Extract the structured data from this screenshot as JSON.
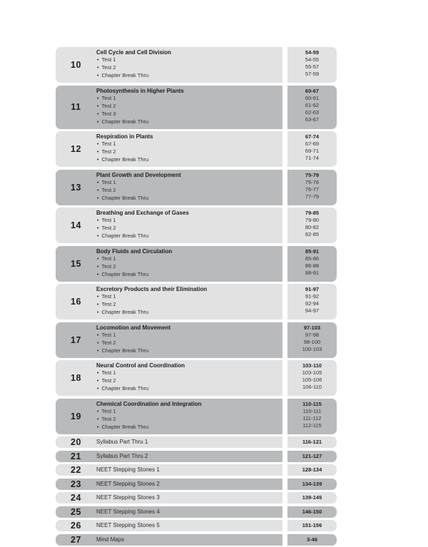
{
  "toc": {
    "bullet": "•",
    "colors": {
      "row_light": "#e2e2e3",
      "row_dark": "#b9babc",
      "page_bg": "#ffffff",
      "text": "#1e1e1e"
    },
    "rows": [
      {
        "num": "10",
        "title": "Cell Cycle and Cell Division",
        "range": "54-59",
        "shade": "light",
        "items": [
          {
            "label": "Test 1",
            "range": "54-55"
          },
          {
            "label": "Test 2",
            "range": "55-57"
          },
          {
            "label": "Chapter Break Thru",
            "range": "57-59"
          }
        ]
      },
      {
        "num": "11",
        "title": "Photosynthesis in Higher Plants",
        "range": "60-67",
        "shade": "dark",
        "items": [
          {
            "label": "Test 1",
            "range": "60-61"
          },
          {
            "label": "Test 2",
            "range": "61-62"
          },
          {
            "label": "Test 3",
            "range": "62-63"
          },
          {
            "label": "Chapter Break Thru",
            "range": "63-67"
          }
        ]
      },
      {
        "num": "12",
        "title": "Respiration in Plants",
        "range": "67-74",
        "shade": "light",
        "items": [
          {
            "label": "Test 1",
            "range": "67-69"
          },
          {
            "label": "Test 2",
            "range": "69-71"
          },
          {
            "label": "Chapter Break Thru",
            "range": "71-74"
          }
        ]
      },
      {
        "num": "13",
        "title": "Plant Growth and Development",
        "range": "75-79",
        "shade": "dark",
        "items": [
          {
            "label": "Test 1",
            "range": "75-76"
          },
          {
            "label": "Test 2",
            "range": "76-77"
          },
          {
            "label": "Chapter Break Thru",
            "range": "77-79"
          }
        ]
      },
      {
        "num": "14",
        "title": "Breathing and Exchange of Gases",
        "range": "79-85",
        "shade": "light",
        "items": [
          {
            "label": "Test 1",
            "range": "79-80"
          },
          {
            "label": "Test 2",
            "range": "80-82"
          },
          {
            "label": "Chapter Break Thru",
            "range": "82-85"
          }
        ]
      },
      {
        "num": "15",
        "title": "Body Fluids and Circulation",
        "range": "85-91",
        "shade": "dark",
        "items": [
          {
            "label": "Test 1",
            "range": "85-86"
          },
          {
            "label": "Test 2",
            "range": "86-88"
          },
          {
            "label": "Chapter Break Thru",
            "range": "88-91"
          }
        ]
      },
      {
        "num": "16",
        "title": "Excretory Products and their Elimination",
        "range": "91-97",
        "shade": "light",
        "items": [
          {
            "label": "Test 1",
            "range": "91-92"
          },
          {
            "label": "Test 2",
            "range": "92-94"
          },
          {
            "label": "Chapter Break Thru",
            "range": "94-97"
          }
        ]
      },
      {
        "num": "17",
        "title": "Locomotion and Movement",
        "range": "97-103",
        "shade": "dark",
        "items": [
          {
            "label": "Test 1",
            "range": "97-98"
          },
          {
            "label": "Test 2",
            "range": "98-100"
          },
          {
            "label": "Chapter Break Thru",
            "range": "100-103"
          }
        ]
      },
      {
        "num": "18",
        "title": "Neural Control and Coordination",
        "range": "103-110",
        "shade": "light",
        "items": [
          {
            "label": "Test 1",
            "range": "103-105"
          },
          {
            "label": "Test 2",
            "range": "105-106"
          },
          {
            "label": "Chapter Break Thru",
            "range": "106-110"
          }
        ]
      },
      {
        "num": "19",
        "title": "Chemical Coordination and Integration",
        "range": "110-115",
        "shade": "dark",
        "items": [
          {
            "label": "Test 1",
            "range": "110-111"
          },
          {
            "label": "Test 2",
            "range": "111-112"
          },
          {
            "label": "Chapter Break Thru",
            "range": "112-115"
          }
        ]
      },
      {
        "num": "20",
        "title": "Syllabus Part Thru 1",
        "range": "116-121",
        "shade": "light",
        "items": []
      },
      {
        "num": "21",
        "title": "Syllabus Part Thru 2",
        "range": "121-127",
        "shade": "dark",
        "items": []
      },
      {
        "num": "22",
        "title": "NEET Stepping Stones 1",
        "range": "128-134",
        "shade": "light",
        "items": []
      },
      {
        "num": "23",
        "title": "NEET Stepping Stones 2",
        "range": "134-139",
        "shade": "dark",
        "items": []
      },
      {
        "num": "24",
        "title": "NEET Stepping Stones 3",
        "range": "139-145",
        "shade": "light",
        "items": []
      },
      {
        "num": "25",
        "title": "NEET Stepping Stones 4",
        "range": "146-150",
        "shade": "dark",
        "items": []
      },
      {
        "num": "26",
        "title": "NEET Stepping Stones 5",
        "range": "151-156",
        "shade": "light",
        "items": []
      },
      {
        "num": "27",
        "title": "Mind Maps",
        "range": "3-46",
        "shade": "dark",
        "items": []
      }
    ]
  }
}
